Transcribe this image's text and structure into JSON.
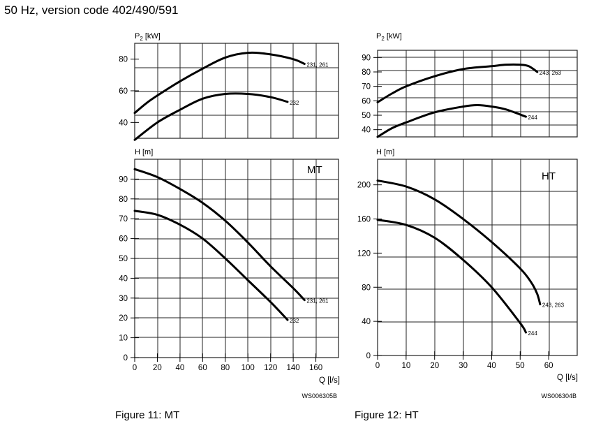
{
  "page": {
    "title": "50 Hz, version code 402/490/591"
  },
  "figures": [
    {
      "caption": "Figure 11: MT",
      "code": "WS006305B",
      "label": "MT"
    },
    {
      "caption": "Figure 12: HT",
      "code": "WS006304B",
      "label": "HT"
    }
  ],
  "chart_data": [
    {
      "id": "mt_power",
      "type": "line",
      "ylabel": "P2 [kW]",
      "xlim": [
        0,
        180
      ],
      "ylim": [
        30,
        90
      ],
      "yticks": [
        40,
        60,
        80
      ],
      "grid": true,
      "series": [
        {
          "name": "231, 261",
          "x": [
            0,
            10,
            20,
            40,
            60,
            80,
            100,
            120,
            140,
            150
          ],
          "y": [
            46,
            52,
            57,
            66,
            74,
            81,
            84,
            83,
            80,
            77
          ]
        },
        {
          "name": "232",
          "x": [
            0,
            20,
            40,
            60,
            80,
            100,
            120,
            135
          ],
          "y": [
            29,
            40,
            48,
            55,
            58,
            58,
            56,
            53
          ]
        }
      ]
    },
    {
      "id": "mt_head",
      "type": "line",
      "ylabel": "H [m]",
      "xlabel": "Q [l/s]",
      "label": "MT",
      "xlim": [
        0,
        180
      ],
      "ylim": [
        0,
        100
      ],
      "xticks": [
        0,
        20,
        40,
        60,
        80,
        100,
        120,
        140,
        160
      ],
      "yticks": [
        0,
        10,
        20,
        30,
        40,
        50,
        60,
        70,
        80,
        90
      ],
      "grid": true,
      "series": [
        {
          "name": "231, 261",
          "x": [
            0,
            20,
            40,
            60,
            80,
            100,
            120,
            140,
            150
          ],
          "y": [
            95,
            91,
            85,
            78,
            69,
            58,
            46,
            35,
            29
          ]
        },
        {
          "name": "232",
          "x": [
            0,
            20,
            40,
            60,
            80,
            100,
            120,
            135
          ],
          "y": [
            74,
            72,
            67,
            60,
            50,
            39,
            28,
            19
          ]
        }
      ]
    },
    {
      "id": "ht_power",
      "type": "line",
      "ylabel": "P2 [kW]",
      "xlim": [
        0,
        70
      ],
      "ylim": [
        35,
        95
      ],
      "yticks": [
        40,
        50,
        60,
        70,
        80,
        90
      ],
      "grid": true,
      "series": [
        {
          "name": "243, 263",
          "x": [
            0,
            5,
            10,
            20,
            30,
            40,
            45,
            50,
            53,
            56
          ],
          "y": [
            59,
            65,
            70,
            77,
            82,
            84,
            85,
            85,
            84,
            80
          ]
        },
        {
          "name": "244",
          "x": [
            0,
            5,
            10,
            20,
            30,
            35,
            40,
            45,
            52
          ],
          "y": [
            35,
            41,
            45,
            52,
            56,
            57,
            56,
            54,
            49
          ]
        }
      ]
    },
    {
      "id": "ht_head",
      "type": "line",
      "ylabel": "H [m]",
      "xlabel": "Q [l/s]",
      "label": "HT",
      "xlim": [
        0,
        70
      ],
      "ylim": [
        0,
        230
      ],
      "xticks": [
        0,
        10,
        20,
        30,
        40,
        50,
        60
      ],
      "yticks": [
        0,
        40,
        80,
        120,
        160,
        200
      ],
      "grid": true,
      "series": [
        {
          "name": "243, 263",
          "x": [
            0,
            10,
            20,
            30,
            40,
            50,
            54,
            56,
            57
          ],
          "y": [
            205,
            198,
            183,
            160,
            133,
            102,
            85,
            72,
            60
          ]
        },
        {
          "name": "244",
          "x": [
            0,
            10,
            20,
            30,
            40,
            50,
            52
          ],
          "y": [
            159,
            153,
            138,
            112,
            80,
            38,
            27
          ]
        }
      ]
    }
  ]
}
